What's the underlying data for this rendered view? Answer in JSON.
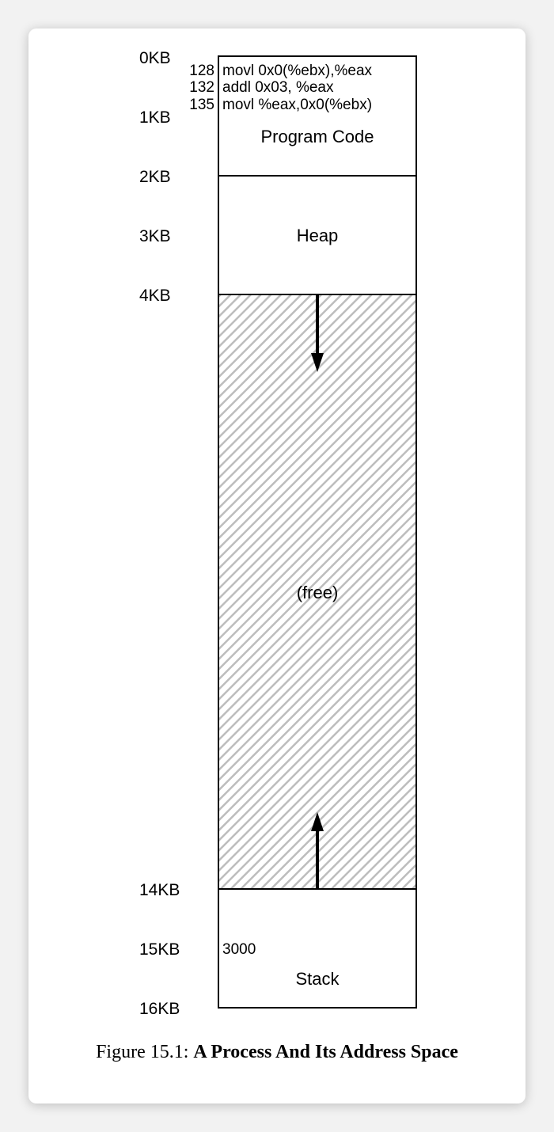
{
  "address_labels": [
    "0KB",
    "1KB",
    "2KB",
    "3KB",
    "4KB",
    "14KB",
    "15KB",
    "16KB"
  ],
  "code": {
    "instructions": [
      {
        "addr": "128",
        "text": "movl 0x0(%ebx),%eax"
      },
      {
        "addr": "132",
        "text": "addl 0x03, %eax"
      },
      {
        "addr": "135",
        "text": "movl %eax,0x0(%ebx)"
      }
    ],
    "segment_label": "Program Code"
  },
  "heap": {
    "label": "Heap"
  },
  "free": {
    "label": "(free)"
  },
  "stack": {
    "label": "Stack",
    "value": "3000"
  },
  "caption": {
    "prefix": "Figure 15.1:",
    "title": "A Process And Its Address Space"
  },
  "colors": {
    "hatch": "#bdbdbd",
    "border": "#000000"
  }
}
